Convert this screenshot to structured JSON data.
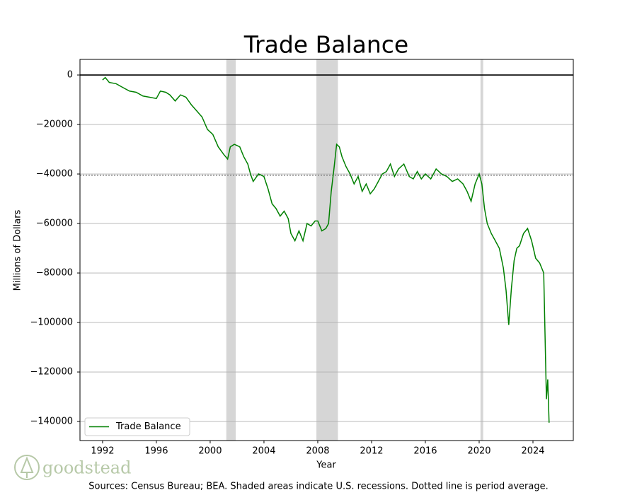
{
  "chart_data": {
    "type": "line",
    "title": "Trade Balance",
    "xlabel": "Year",
    "ylabel": "Millions of Dollars",
    "source": "Sources: Census Bureau; BEA. Shaded areas indicate U.S. recessions. Dotted line is period average.",
    "logo": "goodstead",
    "x": [
      1992.0,
      1992.2,
      1992.5,
      1993.0,
      1993.5,
      1994.0,
      1994.5,
      1995.0,
      1995.5,
      1996.0,
      1996.3,
      1996.7,
      1997.0,
      1997.4,
      1997.8,
      1998.2,
      1998.6,
      1999.0,
      1999.4,
      1999.8,
      2000.2,
      2000.6,
      2001.0,
      2001.3,
      2001.5,
      2001.8,
      2002.2,
      2002.5,
      2002.8,
      2003.0,
      2003.2,
      2003.6,
      2004.0,
      2004.3,
      2004.6,
      2004.9,
      2005.2,
      2005.5,
      2005.8,
      2006.0,
      2006.3,
      2006.6,
      2006.9,
      2007.2,
      2007.5,
      2007.8,
      2008.0,
      2008.3,
      2008.6,
      2008.8,
      2009.0,
      2009.2,
      2009.4,
      2009.6,
      2009.8,
      2010.1,
      2010.4,
      2010.7,
      2011.0,
      2011.3,
      2011.6,
      2011.9,
      2012.2,
      2012.5,
      2012.8,
      2013.1,
      2013.4,
      2013.7,
      2014.0,
      2014.4,
      2014.8,
      2015.1,
      2015.4,
      2015.7,
      2016.0,
      2016.4,
      2016.8,
      2017.2,
      2017.6,
      2018.0,
      2018.4,
      2018.8,
      2019.1,
      2019.4,
      2019.7,
      2020.0,
      2020.2,
      2020.4,
      2020.6,
      2020.9,
      2021.2,
      2021.5,
      2021.8,
      2022.0,
      2022.2,
      2022.4,
      2022.6,
      2022.8,
      2023.0,
      2023.3,
      2023.6,
      2023.9,
      2024.2,
      2024.5,
      2024.8,
      2025.0,
      2025.1,
      2025.2
    ],
    "series": [
      {
        "name": "Trade Balance",
        "color": "#008000",
        "values": [
          -2000,
          -1000,
          -3000,
          -3500,
          -5000,
          -6500,
          -7000,
          -8500,
          -9000,
          -9500,
          -6500,
          -7000,
          -8000,
          -10500,
          -8000,
          -9000,
          -12000,
          -14500,
          -17000,
          -22000,
          -24000,
          -29000,
          -32000,
          -34000,
          -29000,
          -28000,
          -29000,
          -33000,
          -36000,
          -40000,
          -43000,
          -40000,
          -41000,
          -46000,
          -52000,
          -54000,
          -57000,
          -55000,
          -58000,
          -64000,
          -67000,
          -63000,
          -67000,
          -60000,
          -61000,
          -59000,
          -59000,
          -63000,
          -62000,
          -60000,
          -47000,
          -38000,
          -28000,
          -29000,
          -33000,
          -37000,
          -40000,
          -44000,
          -41000,
          -47000,
          -44000,
          -48000,
          -46000,
          -43000,
          -40000,
          -39000,
          -36000,
          -41000,
          -38000,
          -36000,
          -41000,
          -42000,
          -39000,
          -42000,
          -40000,
          -42000,
          -38000,
          -40000,
          -41000,
          -43000,
          -42000,
          -44000,
          -47000,
          -51000,
          -44000,
          -40000,
          -44000,
          -54000,
          -60000,
          -64000,
          -67000,
          -70000,
          -78000,
          -87000,
          -101000,
          -86000,
          -75000,
          -70000,
          -69000,
          -64000,
          -62000,
          -67000,
          -74000,
          -76000,
          -80000,
          -131000,
          -123000,
          -140500
        ]
      }
    ],
    "recessions": [
      [
        2001.2,
        2001.9
      ],
      [
        2007.9,
        2009.5
      ],
      [
        2020.1,
        2020.3
      ]
    ],
    "recession_color": "#d6d6d6",
    "average": -40500,
    "zero_line": 0,
    "xlim": [
      1990.32,
      2027.0
    ],
    "ylim": [
      -147700,
      6300
    ],
    "xticks": [
      1992,
      1996,
      2000,
      2004,
      2008,
      2012,
      2016,
      2020,
      2024
    ],
    "yticks": [
      0,
      {
        "value": -20000,
        "label": "−20000"
      },
      {
        "value": -40000,
        "label": "−40000"
      },
      {
        "value": -60000,
        "label": "−60000"
      },
      {
        "value": -80000,
        "label": "−80000"
      },
      {
        "value": -100000,
        "label": "−100000"
      },
      {
        "value": -120000,
        "label": "−120000"
      },
      {
        "value": -140000,
        "label": "−140000"
      }
    ],
    "grid": true,
    "legend": "lower left"
  }
}
